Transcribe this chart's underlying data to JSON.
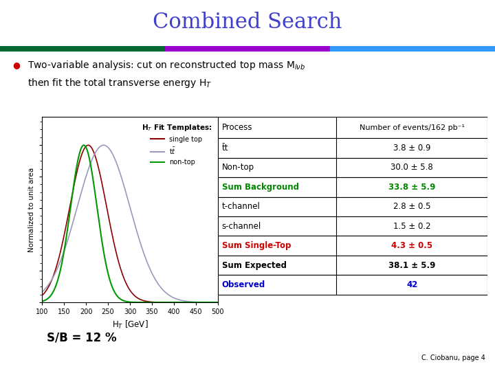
{
  "title": "Combined Search",
  "title_color": "#4040CC",
  "title_fontsize": 22,
  "bg_color": "#ffffff",
  "header_bar_colors": [
    "#006633",
    "#9900CC",
    "#3399FF"
  ],
  "table_headers": [
    "Process",
    "Number of events/162 pb⁻¹"
  ],
  "table_rows": [
    [
      "tt",
      "3.8 ± 0.9",
      "black",
      "black",
      false
    ],
    [
      "Non-top",
      "30.0 ± 5.8",
      "black",
      "black",
      false
    ],
    [
      "Sum Background",
      "33.8 ± 5.9",
      "#008800",
      "#008800",
      false
    ],
    [
      "t-channel",
      "2.8 ± 0.5",
      "black",
      "black",
      false
    ],
    [
      "s-channel",
      "1.5 ± 0.2",
      "black",
      "black",
      false
    ],
    [
      "Sum Single-Top",
      "4.3 ± 0.5",
      "#CC0000",
      "#CC0000",
      false
    ],
    [
      "Sum Expected",
      "38.1 ± 5.9",
      "black",
      "black",
      true
    ],
    [
      "Observed",
      "42",
      "#0000CC",
      "#0000CC",
      false
    ]
  ],
  "sb_text": "S/B = 12 %",
  "credit_text": "C. Ciobanu, page 4",
  "plot_xlabel": "H$_T$ [GeV]",
  "plot_ylabel": "Normalized to unit area",
  "legend_title": "H$_T$ Fit Templates:",
  "legend_entries": [
    "single top",
    "t$\\bar{t}$",
    "non-top"
  ],
  "legend_colors": [
    "#8B0000",
    "#9999BB",
    "#009900"
  ],
  "highlight_color": "#FFFFCC",
  "curve_params": {
    "single_top": {
      "mu": 205,
      "sigma": 42,
      "color": "#8B0000"
    },
    "ttbar": {
      "mu": 240,
      "sigma": 60,
      "color": "#9999BB"
    },
    "nontop": {
      "mu": 195,
      "sigma": 30,
      "color": "#009900"
    }
  }
}
